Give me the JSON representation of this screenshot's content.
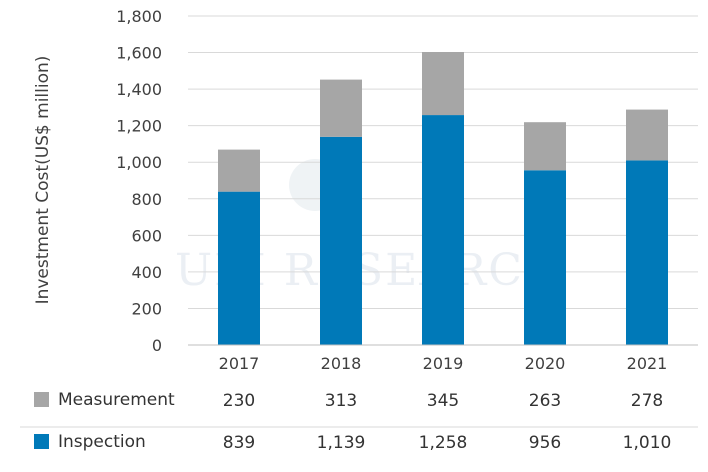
{
  "chart_data": {
    "type": "bar",
    "stacked": true,
    "categories": [
      "2017",
      "2018",
      "2019",
      "2020",
      "2021"
    ],
    "series": [
      {
        "name": "Measurement",
        "values": [
          230,
          313,
          345,
          263,
          278
        ],
        "labels": [
          "230",
          "313",
          "345",
          "263",
          "278"
        ],
        "color": "#a6a6a6"
      },
      {
        "name": "Inspection",
        "values": [
          839,
          1139,
          1258,
          956,
          1010
        ],
        "labels": [
          "839",
          "1,139",
          "1,258",
          "956",
          "1,010"
        ],
        "color": "#0079b8"
      }
    ],
    "ylabel": "Investment Cost(US$ million)",
    "ylim": [
      0,
      1800
    ],
    "yticks": [
      "0",
      "200",
      "400",
      "600",
      "800",
      "1,000",
      "1,200",
      "1,400",
      "1,600",
      "1,800"
    ],
    "grid": true,
    "legend": "data-table-below"
  },
  "watermark": {
    "text": "UBI RESEARCH"
  }
}
